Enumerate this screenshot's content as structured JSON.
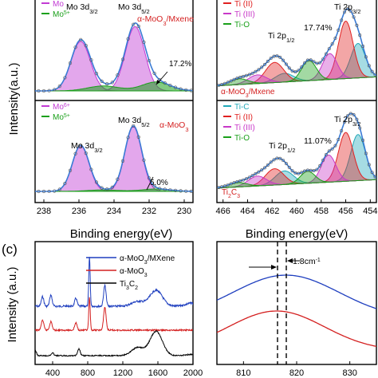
{
  "panel_labels": [
    "(c)"
  ],
  "colors": {
    "mo6": "#c23bd4",
    "mo5": "#1aa01a",
    "envelope": "#3a7bd5",
    "tiC": "#20a8b8",
    "tiII": "#e02020",
    "tiIII": "#c838c8",
    "tiO": "#1aa01a",
    "ramanMx": "#1f3fbf",
    "ramanMo": "#d42020",
    "ramanTi": "#000000"
  },
  "chart_data": [
    {
      "type": "line",
      "panel": "a-top",
      "xlabel": "",
      "ylabel": "",
      "xlim": [
        238.5,
        229.5
      ],
      "legend": [
        "Mo",
        "Mo5+"
      ],
      "annotations": [
        "Mo 3d3/2",
        "Mo 3d5/2",
        "α-MoO3/Mxene",
        "17.2%"
      ],
      "series": [
        {
          "name": "Mo6+ 3d3/2",
          "x": [
            235.9
          ],
          "y": [
            1.0
          ]
        },
        {
          "name": "Mo6+ 3d5/2",
          "x": [
            232.8
          ],
          "y": [
            1.3
          ]
        },
        {
          "name": "Mo5+",
          "x": [
            234.6,
            231.6
          ],
          "y": [
            0.1,
            0.18
          ]
        }
      ]
    },
    {
      "type": "line",
      "panel": "a-bottom",
      "xlabel": "Binding energy(eV)",
      "ylabel": "Intensity(a.u.)",
      "xlim": [
        238.5,
        229.5
      ],
      "xticks": [
        "238",
        "236",
        "234",
        "232",
        "230"
      ],
      "legend": [
        "Mo6+",
        "Mo5+"
      ],
      "annotations": [
        "Mo 3d3/2",
        "Mo 3d5/2",
        "α-MoO3",
        "5.0%"
      ],
      "series": [
        {
          "name": "Mo6+ 3d3/2",
          "x": [
            235.9
          ],
          "y": [
            0.95
          ]
        },
        {
          "name": "Mo6+ 3d5/2",
          "x": [
            232.9
          ],
          "y": [
            1.35
          ]
        },
        {
          "name": "Mo5+",
          "x": [
            234.6,
            231.6
          ],
          "y": [
            0.03,
            0.05
          ]
        }
      ]
    },
    {
      "type": "line",
      "panel": "b-top",
      "xlabel": "",
      "ylabel": "",
      "xlim": [
        466.5,
        453.5
      ],
      "legend": [
        "Ti (II)",
        "Ti (III)",
        "Ti-O"
      ],
      "annotations": [
        "Ti 2p1/2",
        "17.74%",
        "Ti 2p3/2",
        "α-MoO3/Mxene"
      ],
      "series": [
        {
          "name": "Ti-C",
          "x": [
            455.0,
            461.0
          ],
          "y": [
            0.6,
            0.15
          ]
        },
        {
          "name": "Ti (II)",
          "x": [
            456.0,
            461.8
          ],
          "y": [
            1.0,
            0.35
          ]
        },
        {
          "name": "Ti (III)",
          "x": [
            457.3,
            463.2
          ],
          "y": [
            0.45,
            0.15
          ]
        },
        {
          "name": "Ti-O",
          "x": [
            459.0,
            464.7
          ],
          "y": [
            0.35,
            0.1
          ]
        }
      ]
    },
    {
      "type": "line",
      "panel": "b-bottom",
      "xlabel": "Binding energy(eV)",
      "ylabel": "",
      "xlim": [
        466.5,
        453.5
      ],
      "xticks": [
        "466",
        "464",
        "462",
        "460",
        "458",
        "456",
        "454"
      ],
      "legend": [
        "Ti-C",
        "Ti (II)",
        "Ti (III)",
        "Ti-O"
      ],
      "annotations": [
        "Ti 2p1/2",
        "11.07%",
        "Ti 2p3/2",
        "Ti2C3"
      ],
      "series": [
        {
          "name": "Ti-C",
          "x": [
            455.0,
            461.0
          ],
          "y": [
            0.85,
            0.25
          ]
        },
        {
          "name": "Ti (II)",
          "x": [
            456.0,
            461.8
          ],
          "y": [
            0.9,
            0.3
          ]
        },
        {
          "name": "Ti (III)",
          "x": [
            457.4,
            463.2
          ],
          "y": [
            0.5,
            0.18
          ]
        },
        {
          "name": "Ti-O",
          "x": [
            459.1,
            464.8
          ],
          "y": [
            0.22,
            0.08
          ]
        }
      ]
    },
    {
      "type": "line",
      "panel": "c",
      "xlabel": "",
      "ylabel": "Intensity (a.u.)",
      "xlim": [
        200,
        2000
      ],
      "xticks": [
        "400",
        "800",
        "1200",
        "1600",
        "2000"
      ],
      "legend": [
        "α-MoO3/MXene",
        "α-MoO3",
        "Ti3C2"
      ],
      "series": [
        {
          "name": "α-MoO3/MXene",
          "x": [
            285,
            380,
            665,
            820,
            995,
            1370,
            1580,
            1990
          ],
          "y": [
            0.3,
            0.35,
            0.25,
            1.55,
            0.65,
            0.15,
            0.5,
            0.1
          ]
        },
        {
          "name": "α-MoO3",
          "x": [
            285,
            380,
            665,
            820,
            995,
            1990
          ],
          "y": [
            0.35,
            0.3,
            0.25,
            1.15,
            0.8,
            0.0
          ]
        },
        {
          "name": "Ti3C2",
          "x": [
            200,
            400,
            700,
            1370,
            1580,
            1990
          ],
          "y": [
            0.2,
            0.1,
            0.25,
            0.3,
            0.9,
            0.05
          ]
        }
      ]
    },
    {
      "type": "line",
      "panel": "d",
      "xlabel": "",
      "ylabel": "",
      "xlim": [
        805,
        835
      ],
      "xticks": [
        "810",
        "820",
        "830"
      ],
      "annotations": [
        "1.8cm-1"
      ],
      "series": [
        {
          "name": "α-MoO3/MXene",
          "x": [
            805,
            818,
            835
          ],
          "y": [
            0.55,
            1.0,
            0.45
          ]
        },
        {
          "name": "α-MoO3",
          "x": [
            805,
            816.2,
            835
          ],
          "y": [
            0.15,
            0.55,
            0.05
          ]
        }
      ]
    }
  ]
}
